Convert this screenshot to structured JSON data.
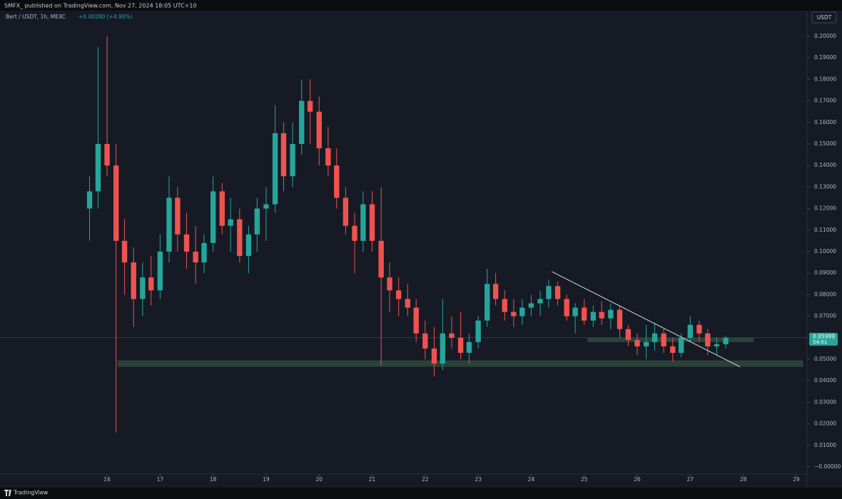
{
  "header": "SMFX_ published on TradingView.com, Nov 27, 2024 18:05 UTC+10",
  "footer": "TradingView",
  "chart_data": {
    "type": "candlestick",
    "symbol": "Bert / USDT, 1h, MEXC",
    "change": "+0.00280 (+4.90%)",
    "currency": "USDT",
    "up_color": "#26a69a",
    "down_color": "#ef5350",
    "x": [
      15.67,
      15.83,
      16.0,
      16.17,
      16.33,
      16.5,
      16.67,
      16.83,
      17.0,
      17.17,
      17.33,
      17.5,
      17.67,
      17.83,
      18.0,
      18.17,
      18.33,
      18.5,
      18.67,
      18.83,
      19.0,
      19.17,
      19.33,
      19.5,
      19.67,
      19.83,
      20.0,
      20.17,
      20.33,
      20.5,
      20.67,
      20.83,
      21.0,
      21.17,
      21.33,
      21.5,
      21.67,
      21.83,
      22.0,
      22.17,
      22.33,
      22.5,
      22.67,
      22.83,
      23.0,
      23.17,
      23.33,
      23.5,
      23.67,
      23.83,
      24.0,
      24.17,
      24.33,
      24.5,
      24.67,
      24.83,
      25.0,
      25.17,
      25.33,
      25.5,
      25.67,
      25.83,
      26.0,
      26.17,
      26.33,
      26.5,
      26.67,
      26.83,
      27.0,
      27.17,
      27.33,
      27.5,
      27.67
    ],
    "open": [
      0.12,
      0.128,
      0.15,
      0.14,
      0.105,
      0.095,
      0.078,
      0.088,
      0.082,
      0.1,
      0.125,
      0.108,
      0.1,
      0.095,
      0.104,
      0.128,
      0.112,
      0.115,
      0.098,
      0.108,
      0.12,
      0.122,
      0.155,
      0.135,
      0.15,
      0.17,
      0.165,
      0.148,
      0.14,
      0.125,
      0.112,
      0.105,
      0.122,
      0.105,
      0.088,
      0.082,
      0.078,
      0.074,
      0.062,
      0.055,
      0.048,
      0.062,
      0.06,
      0.053,
      0.058,
      0.068,
      0.085,
      0.078,
      0.072,
      0.07,
      0.074,
      0.076,
      0.078,
      0.084,
      0.078,
      0.07,
      0.074,
      0.068,
      0.072,
      0.069,
      0.073,
      0.064,
      0.059,
      0.056,
      0.058,
      0.062,
      0.056,
      0.053,
      0.06,
      0.066,
      0.062,
      0.056,
      0.057
    ],
    "high": [
      0.135,
      0.195,
      0.2,
      0.15,
      0.115,
      0.102,
      0.095,
      0.098,
      0.108,
      0.135,
      0.13,
      0.118,
      0.112,
      0.108,
      0.135,
      0.132,
      0.125,
      0.12,
      0.112,
      0.125,
      0.13,
      0.168,
      0.16,
      0.16,
      0.18,
      0.18,
      0.172,
      0.158,
      0.148,
      0.13,
      0.118,
      0.128,
      0.128,
      0.13,
      0.095,
      0.088,
      0.085,
      0.078,
      0.068,
      0.065,
      0.078,
      0.07,
      0.072,
      0.062,
      0.07,
      0.092,
      0.09,
      0.082,
      0.078,
      0.078,
      0.08,
      0.082,
      0.087,
      0.086,
      0.08,
      0.076,
      0.078,
      0.075,
      0.077,
      0.076,
      0.075,
      0.066,
      0.062,
      0.066,
      0.067,
      0.064,
      0.06,
      0.062,
      0.07,
      0.068,
      0.064,
      0.06,
      0.061
    ],
    "low": [
      0.105,
      0.12,
      0.135,
      0.016,
      0.08,
      0.065,
      0.07,
      0.075,
      0.078,
      0.095,
      0.1,
      0.092,
      0.085,
      0.09,
      0.1,
      0.108,
      0.1,
      0.095,
      0.09,
      0.1,
      0.105,
      0.118,
      0.128,
      0.13,
      0.145,
      0.15,
      0.14,
      0.135,
      0.12,
      0.108,
      0.09,
      0.1,
      0.1,
      0.047,
      0.072,
      0.07,
      0.07,
      0.058,
      0.05,
      0.042,
      0.045,
      0.055,
      0.05,
      0.048,
      0.055,
      0.065,
      0.075,
      0.068,
      0.065,
      0.066,
      0.07,
      0.07,
      0.074,
      0.075,
      0.068,
      0.062,
      0.066,
      0.065,
      0.066,
      0.064,
      0.06,
      0.056,
      0.052,
      0.05,
      0.054,
      0.053,
      0.049,
      0.051,
      0.058,
      0.058,
      0.052,
      0.052,
      0.055
    ],
    "close": [
      0.128,
      0.15,
      0.14,
      0.105,
      0.095,
      0.078,
      0.088,
      0.082,
      0.1,
      0.125,
      0.108,
      0.1,
      0.095,
      0.104,
      0.128,
      0.112,
      0.115,
      0.098,
      0.108,
      0.12,
      0.122,
      0.155,
      0.135,
      0.15,
      0.17,
      0.165,
      0.148,
      0.14,
      0.125,
      0.112,
      0.105,
      0.122,
      0.105,
      0.088,
      0.082,
      0.078,
      0.074,
      0.062,
      0.055,
      0.048,
      0.062,
      0.06,
      0.053,
      0.058,
      0.068,
      0.085,
      0.078,
      0.072,
      0.07,
      0.074,
      0.076,
      0.078,
      0.084,
      0.078,
      0.07,
      0.074,
      0.068,
      0.072,
      0.069,
      0.073,
      0.064,
      0.059,
      0.056,
      0.058,
      0.062,
      0.056,
      0.053,
      0.06,
      0.066,
      0.062,
      0.056,
      0.057,
      0.05999
    ],
    "xlim": [
      13.98,
      29.19
    ],
    "xticks": [
      16,
      17,
      18,
      19,
      20,
      21,
      22,
      23,
      24,
      25,
      26,
      27,
      28,
      29
    ],
    "ylim": [
      -0.0033,
      0.2119
    ],
    "yticks": [
      {
        "value": 0.2,
        "label": "0.20000"
      },
      {
        "value": 0.19,
        "label": "0.19000"
      },
      {
        "value": 0.18,
        "label": "0.18000"
      },
      {
        "value": 0.17,
        "label": "0.17000"
      },
      {
        "value": 0.16,
        "label": "0.16000"
      },
      {
        "value": 0.15,
        "label": "0.15000"
      },
      {
        "value": 0.14,
        "label": "0.14000"
      },
      {
        "value": 0.13,
        "label": "0.13000"
      },
      {
        "value": 0.12,
        "label": "0.12000"
      },
      {
        "value": 0.11,
        "label": "0.11000"
      },
      {
        "value": 0.1,
        "label": "0.10000"
      },
      {
        "value": 0.09,
        "label": "0.09000"
      },
      {
        "value": 0.08,
        "label": "0.08000"
      },
      {
        "value": 0.07,
        "label": "0.07000"
      },
      {
        "value": 0.05,
        "label": "0.05000"
      },
      {
        "value": 0.04,
        "label": "0.04000"
      },
      {
        "value": 0.03,
        "label": "0.03000"
      },
      {
        "value": 0.02,
        "label": "0.02000"
      },
      {
        "value": 0.01,
        "label": "0.01000"
      },
      {
        "value": 0,
        "label": "−0.00000"
      }
    ],
    "last_price": 0.05999,
    "countdown": "54:01",
    "zones": [
      {
        "x": [
          16.2,
          29.13
        ],
        "y": [
          0.0465,
          0.0495
        ],
        "color": "#2e4a3c"
      },
      {
        "x": [
          25.06,
          28.2
        ],
        "y": [
          0.058,
          0.06
        ],
        "color": "#2e4a3c"
      }
    ],
    "trendline": {
      "x": [
        24.39,
        27.94
      ],
      "y": [
        0.0907,
        0.0465
      ],
      "color": "#d8dbe2"
    }
  }
}
